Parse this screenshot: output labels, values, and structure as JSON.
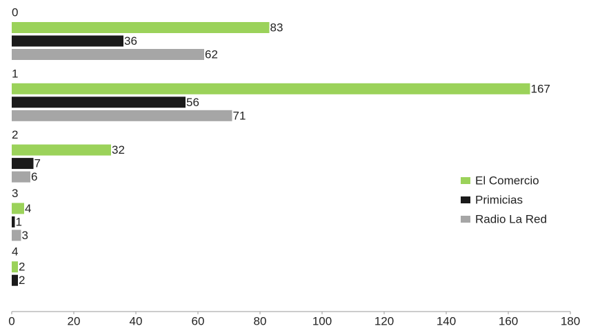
{
  "chart_data": {
    "type": "hbar",
    "categories": [
      "0",
      "1",
      "2",
      "3",
      "4"
    ],
    "series": [
      {
        "name": "El Comercio",
        "color": "#9bd25a",
        "values": [
          83,
          167,
          32,
          4,
          2
        ]
      },
      {
        "name": "Primicias",
        "color": "#1a1a1a",
        "values": [
          36,
          56,
          7,
          1,
          2
        ]
      },
      {
        "name": "Radio La Red",
        "color": "#a6a6a6",
        "values": [
          62,
          71,
          6,
          3,
          null
        ]
      }
    ],
    "xlim": [
      0,
      180
    ],
    "xticks": [
      0,
      20,
      40,
      60,
      80,
      100,
      120,
      140,
      160,
      180
    ],
    "grid": false,
    "legend": "right"
  }
}
